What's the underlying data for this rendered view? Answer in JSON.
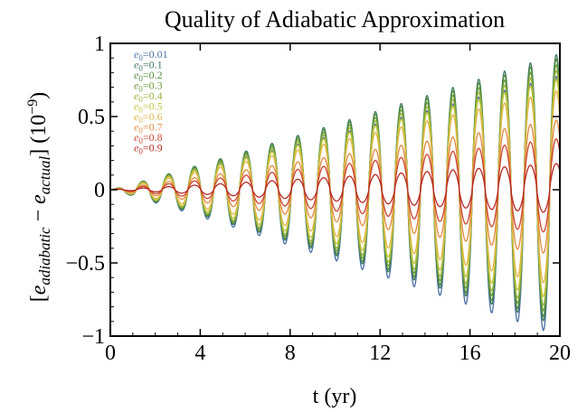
{
  "chart_data": {
    "type": "line",
    "title": "Quality of Adiabatic Approximation",
    "xlabel": "t (yr)",
    "ylabel": {
      "prefix": "[",
      "var1": "e",
      "sub1": "adiabatic",
      "op": " − ",
      "var2": "e",
      "sub2": "actual",
      "suffix": "] (10",
      "sup": "−9",
      "close": ")"
    },
    "xlim": [
      0,
      20
    ],
    "ylim": [
      -1,
      1
    ],
    "xticks": [
      0,
      4,
      8,
      12,
      16,
      20
    ],
    "xtick_labels": [
      "0",
      "4",
      "8",
      "12",
      "16",
      "20"
    ],
    "yticks": [
      -1,
      -0.5,
      0,
      0.5,
      1
    ],
    "ytick_labels": [
      "−1",
      "−0.5",
      "0",
      "0.5",
      "1"
    ],
    "grid": false,
    "legend_position": "top-left",
    "oscillation_period_yr": 1.15,
    "series": [
      {
        "name": "e0=0.01",
        "var": "e",
        "sub": "0",
        "value": "=0.01",
        "color": "#4a6fa5",
        "envelope_max_upper": 0.78,
        "envelope_max_lower": -1.0
      },
      {
        "name": "e0=0.1",
        "var": "e",
        "sub": "0",
        "value": "=0.1",
        "color": "#3f7a5e",
        "envelope_max_upper": 0.93,
        "envelope_max_lower": -0.93
      },
      {
        "name": "e0=0.2",
        "var": "e",
        "sub": "0",
        "value": "=0.2",
        "color": "#4e8a3e",
        "envelope_max_upper": 0.9,
        "envelope_max_lower": -0.9
      },
      {
        "name": "e0=0.3",
        "var": "e",
        "sub": "0",
        "value": "=0.3",
        "color": "#6a9a3a",
        "envelope_max_upper": 0.86,
        "envelope_max_lower": -0.86
      },
      {
        "name": "e0=0.4",
        "var": "e",
        "sub": "0",
        "value": "=0.4",
        "color": "#98b440",
        "envelope_max_upper": 0.82,
        "envelope_max_lower": -0.82
      },
      {
        "name": "e0=0.5",
        "var": "e",
        "sub": "0",
        "value": "=0.5",
        "color": "#c4c43a",
        "envelope_max_upper": 0.76,
        "envelope_max_lower": -0.76
      },
      {
        "name": "e0=0.6",
        "var": "e",
        "sub": "0",
        "value": "=0.6",
        "color": "#e0b545",
        "envelope_max_upper": 0.68,
        "envelope_max_lower": -0.66
      },
      {
        "name": "e0=0.7",
        "var": "e",
        "sub": "0",
        "value": "=0.7",
        "color": "#e08a40",
        "envelope_max_upper": 0.48,
        "envelope_max_lower": -0.45
      },
      {
        "name": "e0=0.8",
        "var": "e",
        "sub": "0",
        "value": "=0.8",
        "color": "#c9452e",
        "envelope_max_upper": 0.35,
        "envelope_max_lower": -0.3
      },
      {
        "name": "e0=0.9",
        "var": "e",
        "sub": "0",
        "value": "=0.9",
        "color": "#b52a22",
        "envelope_max_upper": 0.18,
        "envelope_max_lower": -0.16
      }
    ]
  }
}
